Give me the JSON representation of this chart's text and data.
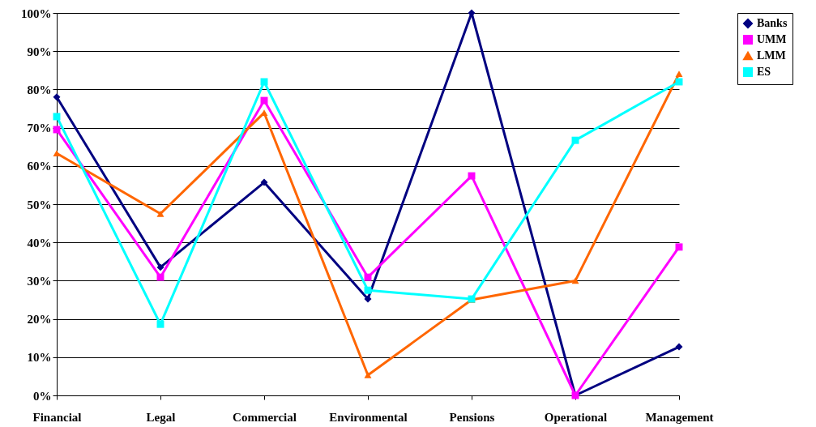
{
  "chart_data": {
    "type": "line",
    "categories": [
      "Financial",
      "Legal",
      "Commercial",
      "Environmental",
      "Pensions",
      "Operational",
      "Management"
    ],
    "series": [
      {
        "name": "Banks",
        "color": "#000080",
        "marker": "diamond",
        "values": [
          78,
          33.5,
          55.7,
          25.2,
          100,
          0,
          12.7
        ]
      },
      {
        "name": "UMM",
        "color": "#ff00ff",
        "marker": "square",
        "values": [
          69.5,
          30.9,
          77.1,
          30.9,
          57.4,
          0,
          38.8
        ]
      },
      {
        "name": "LMM",
        "color": "#ff6600",
        "marker": "triangle",
        "values": [
          63.3,
          47.5,
          73.9,
          5.3,
          25,
          30,
          84.1
        ]
      },
      {
        "name": "ES",
        "color": "#00ffff",
        "marker": "square",
        "values": [
          72.9,
          18.6,
          82,
          27.5,
          25.2,
          66.7,
          82
        ]
      }
    ],
    "ylim": [
      0,
      100
    ],
    "yticks": [
      {
        "value": 0,
        "label": "0%"
      },
      {
        "value": 10,
        "label": "10%"
      },
      {
        "value": 20,
        "label": "20%"
      },
      {
        "value": 30,
        "label": "30%"
      },
      {
        "value": 40,
        "label": "40%"
      },
      {
        "value": 50,
        "label": "50%"
      },
      {
        "value": 60,
        "label": "60%"
      },
      {
        "value": 70,
        "label": "70%"
      },
      {
        "value": 80,
        "label": "80%"
      },
      {
        "value": 90,
        "label": "90%"
      },
      {
        "value": 100,
        "label": "100%"
      }
    ],
    "grid": "y",
    "legend": "right",
    "line_style": "solid"
  }
}
